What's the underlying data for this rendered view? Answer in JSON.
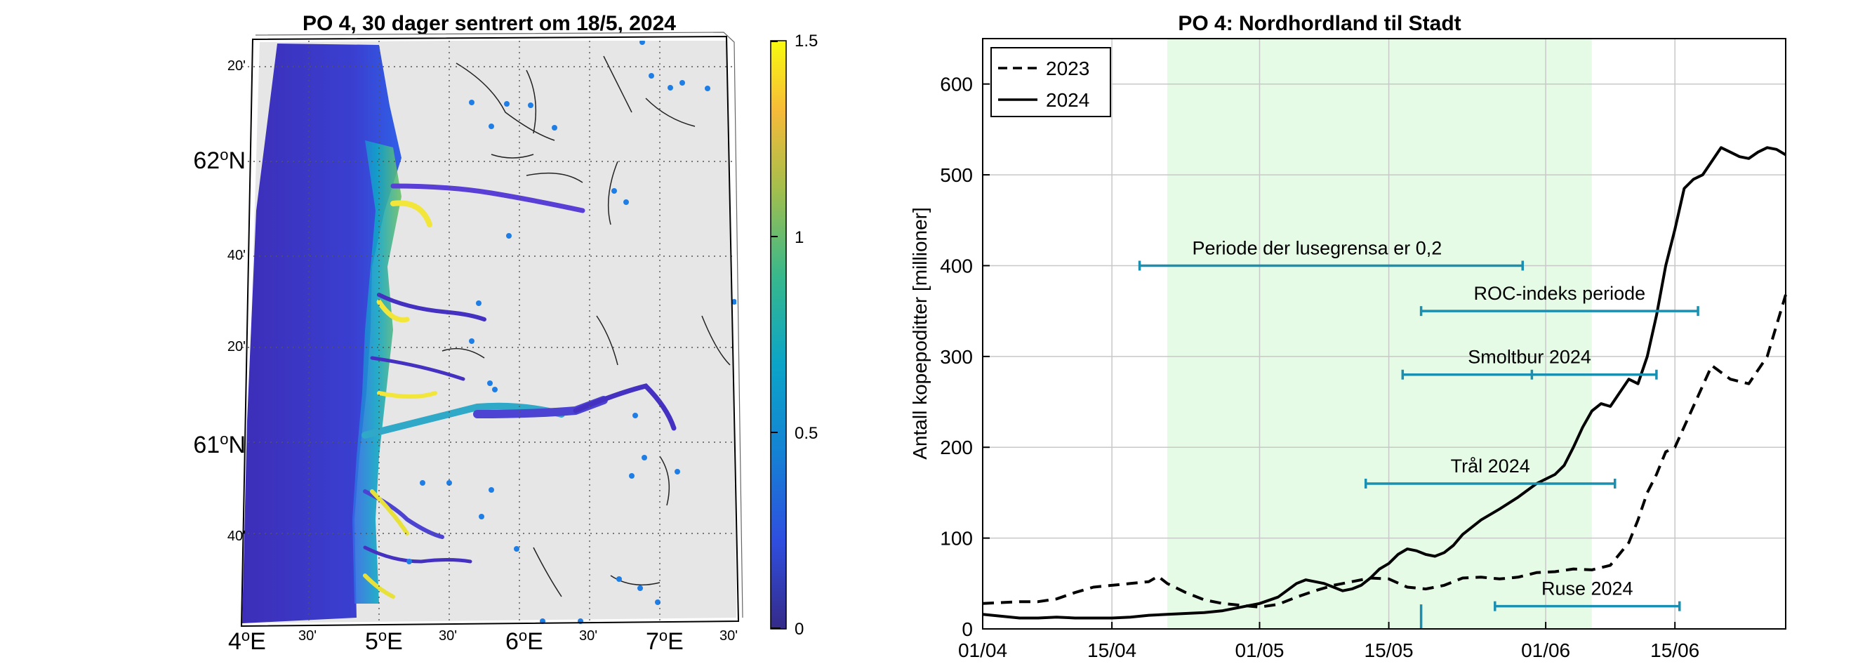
{
  "chart_data": [
    {
      "type": "heatmap",
      "title": "PO 4, 30 dager sentrert om 18/5, 2024",
      "colorbar": {
        "ticks": [
          "0",
          "0.5",
          "1",
          "1.5"
        ],
        "range": [
          0,
          1.5
        ]
      },
      "lon_ticks": [
        {
          "deg": "4",
          "unit": "o",
          "hem": "E"
        },
        {
          "min": "30'"
        },
        {
          "deg": "5",
          "unit": "o",
          "hem": "E"
        },
        {
          "min": "30'"
        },
        {
          "deg": "6",
          "unit": "o",
          "hem": "E"
        },
        {
          "min": "30'"
        },
        {
          "deg": "7",
          "unit": "o",
          "hem": "E"
        },
        {
          "min": "30'"
        }
      ],
      "lat_ticks": [
        {
          "min": "20'"
        },
        {
          "deg": "62",
          "unit": "o",
          "hem": "N"
        },
        {
          "min": "40'"
        },
        {
          "min": "20'"
        },
        {
          "deg": "61",
          "unit": "o",
          "hem": "N"
        },
        {
          "min": "40'"
        }
      ]
    },
    {
      "type": "line",
      "title": "PO 4: Nordhordland til Stadt",
      "ylabel": "Antall kopepoditter [millioner]",
      "xlabel": "",
      "ylim": [
        0,
        650
      ],
      "yticks": [
        "0",
        "100",
        "200",
        "300",
        "400",
        "500",
        "600"
      ],
      "xticks": [
        "01/04",
        "15/04",
        "01/05",
        "15/05",
        "01/06",
        "15/06"
      ],
      "xtick_days": [
        0,
        14,
        30,
        44,
        61,
        75
      ],
      "xlim_days": [
        0,
        87
      ],
      "shaded_band_days": [
        20,
        66
      ],
      "legend": [
        "2023",
        "2024"
      ],
      "series": [
        {
          "name": "2023",
          "style": "dashed",
          "x": [
            0,
            2,
            4,
            6,
            8,
            10,
            12,
            14,
            16,
            18,
            19,
            20,
            22,
            24,
            26,
            28,
            30,
            32,
            34,
            36,
            38,
            40,
            42,
            44,
            46,
            48,
            50,
            52,
            54,
            56,
            58,
            60,
            62,
            64,
            66,
            68,
            70,
            71,
            72,
            73,
            74,
            75,
            77,
            79,
            81,
            83,
            85,
            87
          ],
          "y": [
            28,
            29,
            30,
            30,
            33,
            40,
            46,
            48,
            50,
            52,
            58,
            50,
            40,
            32,
            28,
            26,
            24,
            27,
            35,
            42,
            48,
            52,
            56,
            55,
            46,
            44,
            48,
            56,
            57,
            55,
            57,
            62,
            63,
            66,
            65,
            70,
            95,
            120,
            150,
            170,
            195,
            200,
            245,
            290,
            275,
            270,
            300,
            368
          ]
        },
        {
          "name": "2024",
          "style": "solid",
          "x": [
            0,
            2,
            4,
            6,
            8,
            10,
            12,
            14,
            16,
            18,
            20,
            22,
            24,
            26,
            28,
            30,
            32,
            34,
            35,
            36,
            37,
            38,
            39,
            40,
            41,
            42,
            43,
            44,
            45,
            46,
            47,
            48,
            49,
            50,
            51,
            52,
            54,
            56,
            58,
            60,
            61,
            62,
            63,
            64,
            65,
            66,
            67,
            68,
            69,
            70,
            71,
            72,
            73,
            74,
            75,
            76,
            77,
            78,
            79,
            80,
            81,
            82,
            83,
            84,
            85,
            86,
            87
          ],
          "y": [
            16,
            14,
            12,
            12,
            13,
            12,
            12,
            12,
            13,
            15,
            16,
            17,
            18,
            20,
            24,
            28,
            35,
            50,
            54,
            52,
            50,
            46,
            42,
            44,
            48,
            56,
            66,
            72,
            82,
            88,
            86,
            82,
            80,
            84,
            92,
            104,
            120,
            132,
            145,
            160,
            165,
            170,
            180,
            200,
            222,
            240,
            248,
            245,
            260,
            275,
            270,
            300,
            345,
            400,
            440,
            485,
            495,
            500,
            515,
            530,
            525,
            520,
            518,
            525,
            530,
            528,
            522
          ]
        }
      ],
      "annotations": [
        {
          "label": "Periode der lusegrensa er 0,2",
          "from": 17,
          "to": 58.5,
          "value": 400
        },
        {
          "label": "ROC-indeks periode",
          "from": 47.5,
          "to": 77.5,
          "value": 350
        },
        {
          "label": "Smoltbur 2024",
          "from": 45.5,
          "to": 73,
          "mid": 59.5,
          "value": 280
        },
        {
          "label": "Trål 2024",
          "from": 41.5,
          "to": 68.5,
          "value": 160
        },
        {
          "label": "Ruse 2024",
          "from": 55.5,
          "to": 75.5,
          "value": 25
        }
      ],
      "marker_day": 47.5
    }
  ]
}
